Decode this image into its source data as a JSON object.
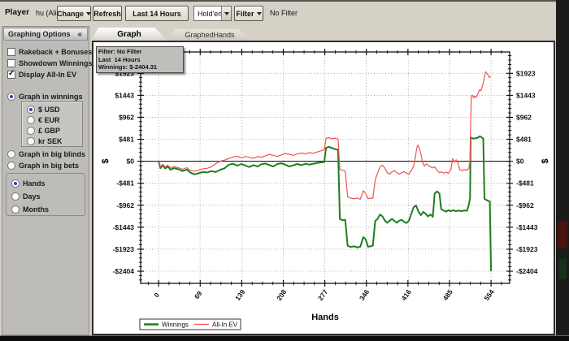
{
  "toolbar": {
    "player_label": "Player",
    "player_name": "hu (Alias)",
    "change_button": "Change",
    "refresh_button": "Refresh",
    "time_range_button": "Last  14 Hours",
    "game_select_value": "Hold'em",
    "filter_button": "Filter",
    "filter_status": "No Filter"
  },
  "sidebar": {
    "title": "Graphing Options",
    "collapse_icon": "«",
    "checkboxes": [
      {
        "label": "Rakeback + Bonuses",
        "checked": false
      },
      {
        "label": "Showdown Winnings",
        "checked": false
      },
      {
        "label": "Display All-In EV",
        "checked": true
      }
    ],
    "graph_mode": [
      {
        "label": "Graph in winnings",
        "selected": true
      },
      {
        "label": "Graph in big blinds",
        "selected": false
      },
      {
        "label": "Graph in big bets",
        "selected": false
      }
    ],
    "currencies": [
      {
        "label": "$ USD",
        "selected": true
      },
      {
        "label": "€ EUR",
        "selected": false
      },
      {
        "label": "£ GBP",
        "selected": false
      },
      {
        "label": "kr SEK",
        "selected": false
      }
    ],
    "x_unit": [
      {
        "label": "Hands",
        "selected": true
      },
      {
        "label": "Days",
        "selected": false
      },
      {
        "label": "Months",
        "selected": false
      }
    ]
  },
  "tabs": [
    {
      "label": "Graph",
      "active": true
    },
    {
      "label": "GraphedHands",
      "active": false
    }
  ],
  "tooltip": {
    "line1": "Filter: No Filter",
    "line2": "Last  14 Hours",
    "line3": "Winnings: $-2404.31"
  },
  "chart_data": {
    "type": "line",
    "xlabel": "Hands",
    "ylabel_left": "$",
    "ylabel_right": "$",
    "grid": true,
    "legend_position": "bottom-left",
    "xlim": [
      -30,
      585
    ],
    "ylim": [
      -2670,
      2390
    ],
    "x_ticks": [
      0,
      69,
      139,
      208,
      277,
      346,
      416,
      485,
      554
    ],
    "y_ticks": [
      1923,
      1443,
      962,
      481,
      0,
      -481,
      -962,
      -1443,
      -1923,
      -2404
    ],
    "y_tick_labels": [
      "$1923",
      "$1443",
      "$962",
      "$481",
      "$0",
      "-$481",
      "-$962",
      "-$1443",
      "-$1923",
      "-$2404"
    ],
    "final_winnings": -2404.31,
    "series": [
      {
        "name": "Winnings",
        "color": "#1e7e1e",
        "width": 2,
        "points": [
          [
            0,
            0
          ],
          [
            3,
            -150
          ],
          [
            7,
            -90
          ],
          [
            11,
            -160
          ],
          [
            15,
            -110
          ],
          [
            20,
            -185
          ],
          [
            26,
            -150
          ],
          [
            33,
            -175
          ],
          [
            40,
            -215
          ],
          [
            47,
            -180
          ],
          [
            53,
            -250
          ],
          [
            60,
            -285
          ],
          [
            67,
            -260
          ],
          [
            74,
            -235
          ],
          [
            81,
            -245
          ],
          [
            88,
            -215
          ],
          [
            95,
            -235
          ],
          [
            103,
            -185
          ],
          [
            110,
            -155
          ],
          [
            117,
            -75
          ],
          [
            124,
            -55
          ],
          [
            131,
            -95
          ],
          [
            138,
            -60
          ],
          [
            145,
            -95
          ],
          [
            151,
            -125
          ],
          [
            158,
            -85
          ],
          [
            165,
            -115
          ],
          [
            171,
            -65
          ],
          [
            178,
            -50
          ],
          [
            185,
            -85
          ],
          [
            191,
            -115
          ],
          [
            198,
            -60
          ],
          [
            205,
            -45
          ],
          [
            211,
            -75
          ],
          [
            218,
            -115
          ],
          [
            225,
            -85
          ],
          [
            231,
            -60
          ],
          [
            238,
            -85
          ],
          [
            245,
            -55
          ],
          [
            251,
            -75
          ],
          [
            258,
            -55
          ],
          [
            265,
            -35
          ],
          [
            271,
            -25
          ],
          [
            276,
            -15
          ],
          [
            279,
            295
          ],
          [
            284,
            315
          ],
          [
            289,
            290
          ],
          [
            294,
            265
          ],
          [
            299,
            250
          ],
          [
            302,
            -1260
          ],
          [
            307,
            -1290
          ],
          [
            311,
            -1280
          ],
          [
            315,
            -1850
          ],
          [
            320,
            -1875
          ],
          [
            326,
            -1860
          ],
          [
            331,
            -1885
          ],
          [
            336,
            -1870
          ],
          [
            341,
            -1660
          ],
          [
            345,
            -1705
          ],
          [
            349,
            -1870
          ],
          [
            353,
            -1860
          ],
          [
            357,
            -1845
          ],
          [
            361,
            -1305
          ],
          [
            365,
            -1260
          ],
          [
            369,
            -1165
          ],
          [
            373,
            -1205
          ],
          [
            377,
            -1300
          ],
          [
            381,
            -1345
          ],
          [
            385,
            -1300
          ],
          [
            389,
            -1260
          ],
          [
            393,
            -1305
          ],
          [
            397,
            -1345
          ],
          [
            401,
            -1300
          ],
          [
            405,
            -1280
          ],
          [
            409,
            -1325
          ],
          [
            413,
            -1350
          ],
          [
            417,
            -1300
          ],
          [
            421,
            -1155
          ],
          [
            425,
            -1005
          ],
          [
            429,
            -965
          ],
          [
            433,
            -1100
          ],
          [
            437,
            -1180
          ],
          [
            441,
            -1105
          ],
          [
            445,
            -1150
          ],
          [
            449,
            -1205
          ],
          [
            453,
            -1165
          ],
          [
            457,
            -1215
          ],
          [
            460,
            -705
          ],
          [
            464,
            -660
          ],
          [
            468,
            -705
          ],
          [
            471,
            -1050
          ],
          [
            475,
            -1080
          ],
          [
            479,
            -1100
          ],
          [
            483,
            -1070
          ],
          [
            487,
            -1090
          ],
          [
            491,
            -1070
          ],
          [
            495,
            -1090
          ],
          [
            500,
            -1080
          ],
          [
            505,
            -1090
          ],
          [
            510,
            -1075
          ],
          [
            514,
            -1085
          ],
          [
            517,
            -950
          ],
          [
            519,
            -810
          ],
          [
            520,
            520
          ],
          [
            524,
            495
          ],
          [
            528,
            505
          ],
          [
            532,
            515
          ],
          [
            535,
            545
          ],
          [
            538,
            525
          ],
          [
            541,
            495
          ],
          [
            543,
            -820
          ],
          [
            546,
            -845
          ],
          [
            549,
            -865
          ],
          [
            552,
            -880
          ],
          [
            554,
            -2404
          ]
        ]
      },
      {
        "name": "All-In EV",
        "color": "#f05252",
        "width": 1.2,
        "points": [
          [
            0,
            0
          ],
          [
            3,
            -120
          ],
          [
            7,
            -65
          ],
          [
            11,
            -125
          ],
          [
            15,
            -85
          ],
          [
            20,
            -145
          ],
          [
            26,
            -115
          ],
          [
            33,
            -140
          ],
          [
            40,
            -175
          ],
          [
            47,
            -140
          ],
          [
            53,
            -200
          ],
          [
            60,
            -215
          ],
          [
            67,
            -195
          ],
          [
            74,
            -165
          ],
          [
            81,
            -155
          ],
          [
            88,
            -120
          ],
          [
            94,
            -65
          ],
          [
            99,
            -25
          ],
          [
            104,
            5
          ],
          [
            110,
            25
          ],
          [
            117,
            60
          ],
          [
            124,
            95
          ],
          [
            131,
            110
          ],
          [
            138,
            75
          ],
          [
            145,
            105
          ],
          [
            151,
            85
          ],
          [
            158,
            65
          ],
          [
            165,
            105
          ],
          [
            171,
            85
          ],
          [
            178,
            120
          ],
          [
            185,
            150
          ],
          [
            191,
            130
          ],
          [
            198,
            105
          ],
          [
            205,
            140
          ],
          [
            211,
            170
          ],
          [
            218,
            150
          ],
          [
            225,
            130
          ],
          [
            231,
            160
          ],
          [
            238,
            180
          ],
          [
            245,
            160
          ],
          [
            251,
            190
          ],
          [
            258,
            175
          ],
          [
            265,
            205
          ],
          [
            271,
            230
          ],
          [
            276,
            255
          ],
          [
            279,
            500
          ],
          [
            284,
            515
          ],
          [
            289,
            490
          ],
          [
            294,
            505
          ],
          [
            299,
            485
          ],
          [
            302,
            -175
          ],
          [
            307,
            -200
          ],
          [
            311,
            -215
          ],
          [
            315,
            -780
          ],
          [
            320,
            -805
          ],
          [
            326,
            -820
          ],
          [
            331,
            -800
          ],
          [
            336,
            -830
          ],
          [
            341,
            -645
          ],
          [
            345,
            -705
          ],
          [
            349,
            -820
          ],
          [
            353,
            -805
          ],
          [
            357,
            -810
          ],
          [
            361,
            -405
          ],
          [
            365,
            -255
          ],
          [
            369,
            -125
          ],
          [
            373,
            -85
          ],
          [
            377,
            -150
          ],
          [
            381,
            -250
          ],
          [
            385,
            -280
          ],
          [
            389,
            -230
          ],
          [
            393,
            -205
          ],
          [
            397,
            -250
          ],
          [
            401,
            -280
          ],
          [
            405,
            -250
          ],
          [
            409,
            -230
          ],
          [
            413,
            -260
          ],
          [
            417,
            -280
          ],
          [
            421,
            -205
          ],
          [
            425,
            -105
          ],
          [
            428,
            95
          ],
          [
            430,
            280
          ],
          [
            432,
            355
          ],
          [
            434,
            305
          ],
          [
            436,
            205
          ],
          [
            438,
            105
          ],
          [
            440,
            -45
          ],
          [
            443,
            -105
          ],
          [
            446,
            -55
          ],
          [
            449,
            -85
          ],
          [
            453,
            -120
          ],
          [
            457,
            -145
          ],
          [
            460,
            -120
          ],
          [
            464,
            -200
          ],
          [
            468,
            -250
          ],
          [
            471,
            -230
          ],
          [
            475,
            -260
          ],
          [
            479,
            -240
          ],
          [
            483,
            -260
          ],
          [
            487,
            -180
          ],
          [
            490,
            55
          ],
          [
            493,
            -20
          ],
          [
            496,
            30
          ],
          [
            499,
            -45
          ],
          [
            502,
            -190
          ],
          [
            506,
            -200
          ],
          [
            510,
            -185
          ],
          [
            514,
            -195
          ],
          [
            517,
            -155
          ],
          [
            519,
            20
          ],
          [
            520,
            800
          ],
          [
            521,
            1420
          ],
          [
            523,
            1445
          ],
          [
            525,
            1385
          ],
          [
            527,
            1425
          ],
          [
            529,
            1395
          ],
          [
            531,
            1445
          ],
          [
            533,
            1505
          ],
          [
            535,
            1565
          ],
          [
            537,
            1545
          ],
          [
            539,
            1605
          ],
          [
            541,
            1705
          ],
          [
            543,
            1855
          ],
          [
            545,
            1955
          ],
          [
            547,
            1925
          ],
          [
            549,
            1885
          ],
          [
            551,
            1835
          ],
          [
            553,
            1865
          ]
        ]
      }
    ]
  }
}
